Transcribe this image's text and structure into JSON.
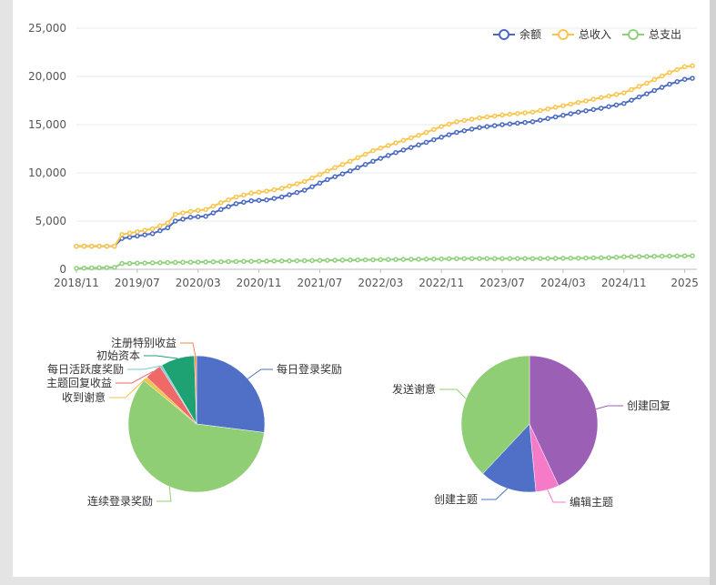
{
  "colors": {
    "series": [
      "#4a6ac2",
      "#f9c54c",
      "#8fd07a"
    ],
    "pie1": [
      "#4f70c6",
      "#8fce74",
      "#f0c24a",
      "#ef6969",
      "#76c8da",
      "#1ea274",
      "#f28a4d"
    ],
    "pie2": [
      "#9b5fb5",
      "#f57ac8",
      "#4f70c6",
      "#8fce74"
    ]
  },
  "chart_data": [
    {
      "type": "line",
      "legend": [
        "余额",
        "总收入",
        "总支出"
      ],
      "legend_position": "top-right",
      "grid": true,
      "ylim": [
        0,
        25000
      ],
      "yticks": [
        "0",
        "5,000",
        "10,000",
        "15,000",
        "20,000",
        "25,000"
      ],
      "xticks": [
        "2018/11",
        "2019/07",
        "2020/03",
        "2020/11",
        "2021/07",
        "2022/03",
        "2022/11",
        "2023/07",
        "2024/03",
        "2024/11",
        "2025"
      ],
      "x_label_month_offsets": [
        0,
        8,
        16,
        24,
        32,
        40,
        48,
        56,
        64,
        72,
        80
      ],
      "x_start": "2018/11",
      "x_count": 78,
      "keypoints": {
        "余额": [
          [
            0,
            2400
          ],
          [
            5,
            2400
          ],
          [
            6,
            3200
          ],
          [
            10,
            3700
          ],
          [
            12,
            4300
          ],
          [
            13,
            5000
          ],
          [
            15,
            5400
          ],
          [
            17,
            5500
          ],
          [
            19,
            6200
          ],
          [
            21,
            6800
          ],
          [
            23,
            7100
          ],
          [
            25,
            7200
          ],
          [
            27,
            7500
          ],
          [
            30,
            8200
          ],
          [
            33,
            9300
          ],
          [
            36,
            10200
          ],
          [
            39,
            11200
          ],
          [
            42,
            12100
          ],
          [
            45,
            12900
          ],
          [
            48,
            13700
          ],
          [
            50,
            14200
          ],
          [
            53,
            14700
          ],
          [
            56,
            15000
          ],
          [
            60,
            15300
          ],
          [
            63,
            15800
          ],
          [
            66,
            16300
          ],
          [
            69,
            16700
          ],
          [
            72,
            17200
          ],
          [
            75,
            18200
          ],
          [
            78,
            19200
          ],
          [
            80,
            19700
          ],
          [
            81,
            19800
          ]
        ],
        "总收入": [
          [
            0,
            2400
          ],
          [
            5,
            2400
          ],
          [
            6,
            3600
          ],
          [
            10,
            4200
          ],
          [
            12,
            4800
          ],
          [
            13,
            5700
          ],
          [
            15,
            6000
          ],
          [
            17,
            6200
          ],
          [
            19,
            6900
          ],
          [
            21,
            7500
          ],
          [
            23,
            7900
          ],
          [
            25,
            8100
          ],
          [
            27,
            8400
          ],
          [
            30,
            9100
          ],
          [
            33,
            10200
          ],
          [
            36,
            11200
          ],
          [
            39,
            12300
          ],
          [
            42,
            13100
          ],
          [
            45,
            13900
          ],
          [
            48,
            14800
          ],
          [
            50,
            15300
          ],
          [
            53,
            15700
          ],
          [
            56,
            16000
          ],
          [
            60,
            16300
          ],
          [
            63,
            16800
          ],
          [
            66,
            17300
          ],
          [
            69,
            17800
          ],
          [
            72,
            18300
          ],
          [
            75,
            19300
          ],
          [
            78,
            20400
          ],
          [
            80,
            21000
          ],
          [
            81,
            21100
          ]
        ],
        "总支出": [
          [
            0,
            100
          ],
          [
            5,
            200
          ],
          [
            6,
            600
          ],
          [
            12,
            700
          ],
          [
            20,
            800
          ],
          [
            30,
            900
          ],
          [
            40,
            1000
          ],
          [
            50,
            1100
          ],
          [
            60,
            1100
          ],
          [
            70,
            1200
          ],
          [
            72,
            1300
          ],
          [
            81,
            1400
          ]
        ]
      }
    },
    {
      "type": "pie",
      "labels": [
        "每日登录奖励",
        "连续登录奖励",
        "收到谢意",
        "主题回复收益",
        "每日活跃度奖励",
        "初始资本",
        "注册特别收益"
      ],
      "values": [
        27,
        59,
        1,
        4,
        0.5,
        8,
        0.5
      ]
    },
    {
      "type": "pie",
      "labels": [
        "创建回复",
        "编辑主题",
        "创建主题",
        "发送谢意"
      ],
      "values": [
        43,
        5.5,
        13.5,
        38
      ]
    }
  ]
}
